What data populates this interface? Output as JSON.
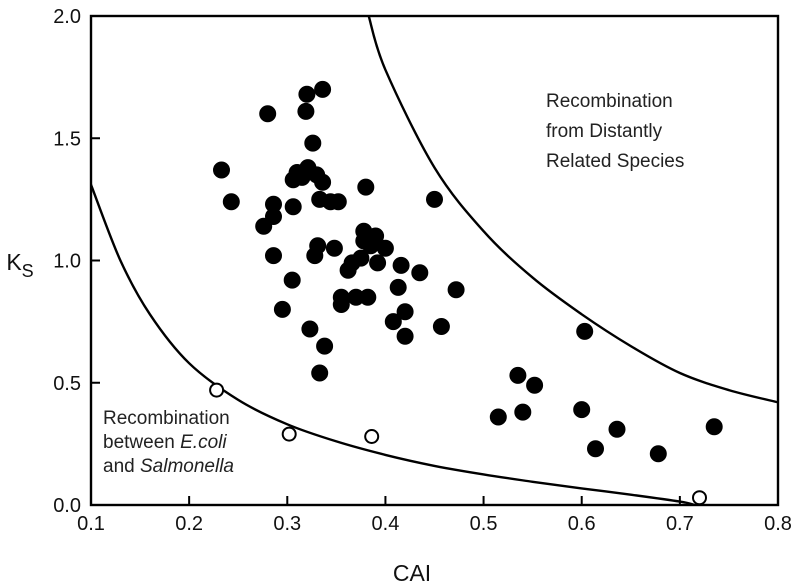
{
  "chart_data": {
    "type": "scatter",
    "title": "",
    "xlabel": "CAI",
    "ylabel": "K",
    "ylabel_subscript": "S",
    "xlim": [
      0.1,
      0.8
    ],
    "ylim": [
      0.0,
      2.0
    ],
    "x_ticks": [
      "0.1",
      "0.2",
      "0.3",
      "0.4",
      "0.5",
      "0.6",
      "0.7",
      "0.8"
    ],
    "y_ticks": [
      "0.0",
      "0.5",
      "1.0",
      "1.5",
      "2.0"
    ],
    "grid": false,
    "series": [
      {
        "marker": "filled-circle",
        "color": "#000000",
        "points": [
          [
            0.233,
            1.37
          ],
          [
            0.243,
            1.24
          ],
          [
            0.28,
            1.6
          ],
          [
            0.276,
            1.14
          ],
          [
            0.286,
            1.23
          ],
          [
            0.286,
            1.18
          ],
          [
            0.286,
            1.02
          ],
          [
            0.295,
            0.8
          ],
          [
            0.305,
            0.92
          ],
          [
            0.306,
            1.33
          ],
          [
            0.306,
            1.22
          ],
          [
            0.31,
            1.36
          ],
          [
            0.315,
            1.34
          ],
          [
            0.32,
            1.68
          ],
          [
            0.319,
            1.61
          ],
          [
            0.321,
            1.38
          ],
          [
            0.323,
            0.72
          ],
          [
            0.326,
            1.48
          ],
          [
            0.328,
            1.02
          ],
          [
            0.33,
            1.35
          ],
          [
            0.331,
            1.06
          ],
          [
            0.333,
            1.25
          ],
          [
            0.333,
            0.54
          ],
          [
            0.336,
            1.7
          ],
          [
            0.336,
            1.32
          ],
          [
            0.338,
            0.65
          ],
          [
            0.344,
            1.24
          ],
          [
            0.348,
            1.05
          ],
          [
            0.352,
            1.24
          ],
          [
            0.355,
            0.85
          ],
          [
            0.355,
            0.82
          ],
          [
            0.362,
            0.96
          ],
          [
            0.366,
            0.99
          ],
          [
            0.37,
            0.85
          ],
          [
            0.375,
            1.01
          ],
          [
            0.378,
            1.12
          ],
          [
            0.378,
            1.08
          ],
          [
            0.38,
            1.3
          ],
          [
            0.382,
            0.85
          ],
          [
            0.385,
            1.06
          ],
          [
            0.39,
            1.1
          ],
          [
            0.392,
            0.99
          ],
          [
            0.4,
            1.05
          ],
          [
            0.408,
            0.75
          ],
          [
            0.413,
            0.89
          ],
          [
            0.416,
            0.98
          ],
          [
            0.42,
            0.79
          ],
          [
            0.42,
            0.69
          ],
          [
            0.435,
            0.95
          ],
          [
            0.45,
            1.25
          ],
          [
            0.457,
            0.73
          ],
          [
            0.472,
            0.88
          ],
          [
            0.515,
            0.36
          ],
          [
            0.535,
            0.53
          ],
          [
            0.54,
            0.38
          ],
          [
            0.552,
            0.49
          ],
          [
            0.6,
            0.39
          ],
          [
            0.603,
            0.71
          ],
          [
            0.614,
            0.23
          ],
          [
            0.636,
            0.31
          ],
          [
            0.678,
            0.21
          ],
          [
            0.735,
            0.32
          ]
        ]
      },
      {
        "marker": "open-circle",
        "color": "#000000",
        "points": [
          [
            0.228,
            0.47
          ],
          [
            0.302,
            0.29
          ],
          [
            0.386,
            0.28
          ],
          [
            0.72,
            0.03
          ]
        ]
      }
    ],
    "curves": [
      {
        "id": "lower-boundary",
        "points": [
          [
            0.1,
            1.31
          ],
          [
            0.13,
            1.0
          ],
          [
            0.16,
            0.78
          ],
          [
            0.2,
            0.58
          ],
          [
            0.25,
            0.43
          ],
          [
            0.3,
            0.33
          ],
          [
            0.35,
            0.26
          ],
          [
            0.4,
            0.205
          ],
          [
            0.45,
            0.16
          ],
          [
            0.5,
            0.125
          ],
          [
            0.55,
            0.095
          ],
          [
            0.6,
            0.068
          ],
          [
            0.65,
            0.042
          ],
          [
            0.7,
            0.014
          ],
          [
            0.715,
            0.0
          ]
        ]
      },
      {
        "id": "upper-boundary",
        "points": [
          [
            0.383,
            2.0
          ],
          [
            0.4,
            1.78
          ],
          [
            0.45,
            1.38
          ],
          [
            0.5,
            1.12
          ],
          [
            0.55,
            0.93
          ],
          [
            0.6,
            0.78
          ],
          [
            0.65,
            0.65
          ],
          [
            0.7,
            0.54
          ],
          [
            0.75,
            0.47
          ],
          [
            0.8,
            0.42
          ]
        ]
      }
    ],
    "annotations": {
      "upper_region": [
        "Recombination",
        "from Distantly",
        "Related Species"
      ],
      "lower_region": {
        "line1": "Recombination",
        "line2_prefix": "between ",
        "line2_italic": "E.coli",
        "line3_prefix": "and ",
        "line3_italic": "Salmonella"
      }
    }
  }
}
